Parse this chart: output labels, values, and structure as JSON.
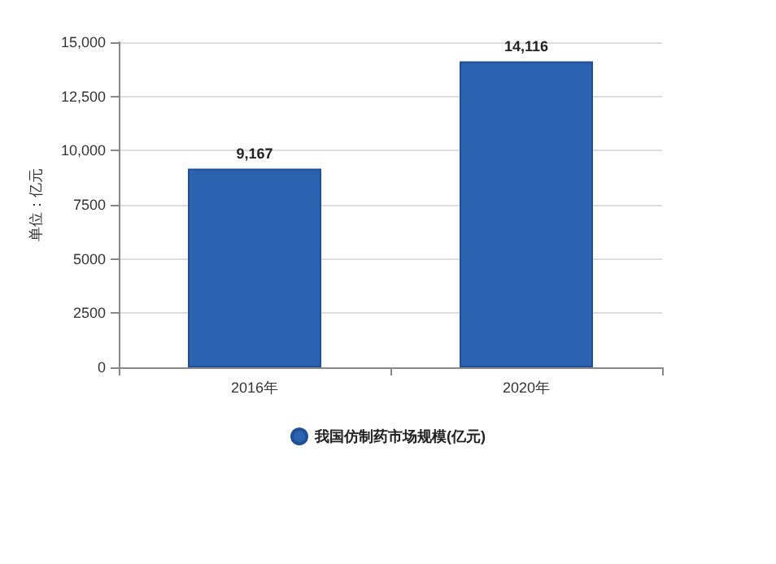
{
  "chart_data": {
    "type": "bar",
    "ylabel": "单位：亿元",
    "categories": [
      "2016年",
      "2020年"
    ],
    "series": [
      {
        "name": "我国仿制药市场规模(亿元)",
        "color": "#2a62b0",
        "values": [
          9167,
          14116
        ],
        "value_labels": [
          "9,167",
          "14,116"
        ]
      }
    ],
    "ylim": [
      0,
      15000
    ],
    "yticks": [
      0,
      2500,
      5000,
      7500,
      {
        "value": 10000,
        "label": "10,000"
      },
      {
        "value": 12500,
        "label": "12,500"
      },
      {
        "value": 15000,
        "label": "15,000"
      }
    ],
    "grid": "y",
    "legend": "bottom"
  }
}
